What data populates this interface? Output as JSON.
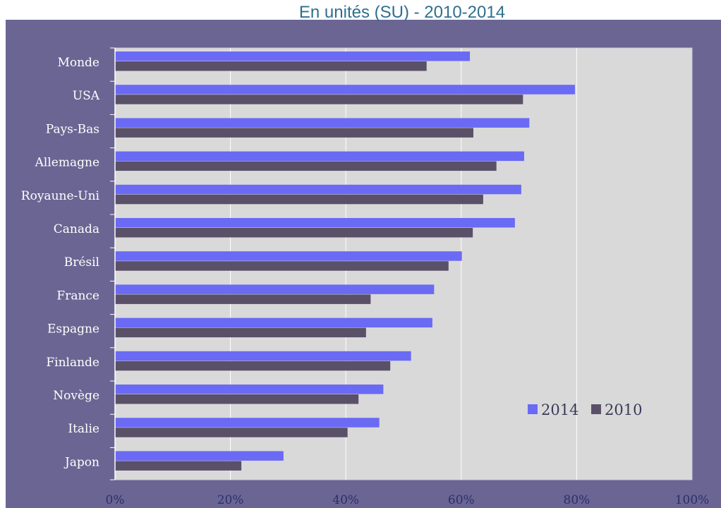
{
  "chart_data": {
    "type": "bar",
    "orientation": "horizontal",
    "title": "En unités (SU) - 2010-2014",
    "categories": [
      "Monde",
      "USA",
      "Pays-Bas",
      "Allemagne",
      "Royaune-Uni",
      "Canada",
      "Brésil",
      "France",
      "Espagne",
      "Finlande",
      "Novège",
      "Italie",
      "Japon"
    ],
    "series": [
      {
        "name": "2014",
        "color": "#6a6af4",
        "values": [
          61.5,
          79.7,
          71.8,
          70.9,
          70.4,
          69.3,
          60.1,
          55.3,
          55.0,
          51.3,
          46.5,
          45.8,
          29.2
        ]
      },
      {
        "name": "2010",
        "color": "#5a5068",
        "values": [
          54.0,
          70.7,
          62.1,
          66.1,
          63.8,
          62.0,
          57.8,
          44.3,
          43.5,
          47.7,
          42.2,
          40.3,
          21.9
        ]
      }
    ],
    "xlim": [
      0,
      100
    ],
    "x_ticks": [
      "0%",
      "20%",
      "40%",
      "60%",
      "80%",
      "100%"
    ],
    "grid": true,
    "legend_position": "bottom-right",
    "plot_background": "#d9d9d9",
    "frame_background": "#6b6593"
  }
}
